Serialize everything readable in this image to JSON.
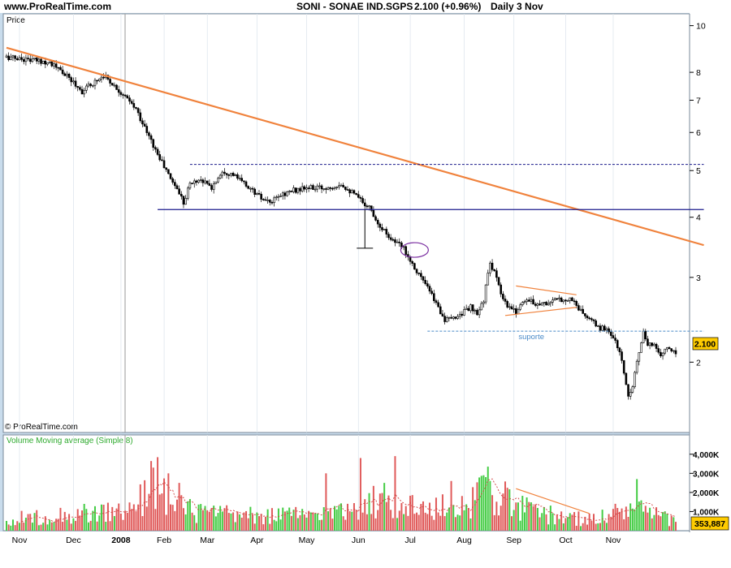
{
  "header": {
    "site": "www.ProRealTime.com",
    "title": "SONI - SONAE IND.SGPS",
    "quote": "2.100 (+0.96%)",
    "period": "Daily  3 Nov"
  },
  "price_panel": {
    "label": "Price",
    "copyright": "© ProRealTime.com",
    "support_label": "suporte"
  },
  "volume_panel": {
    "label": "Volume Moving average (Simple 8)"
  },
  "chart_data": [
    {
      "type": "candlestick",
      "title": "SONI - SONAE IND.SGPS",
      "symbol": "SONI",
      "last_price_label": "2.100",
      "y_scale": "log",
      "ylim": [
        1.55,
        10.3
      ],
      "y_ticks": [
        2,
        3,
        4,
        5,
        6,
        7,
        8,
        10
      ],
      "x_ticks": [
        "Nov",
        "Dec",
        "2008",
        "Feb",
        "Mar",
        "Apr",
        "May",
        "Jun",
        "Jul",
        "Aug",
        "Sep",
        "Oct",
        "Nov"
      ],
      "price_path": [
        [
          0,
          8.6
        ],
        [
          10,
          8.5
        ],
        [
          20,
          8.4
        ],
        [
          30,
          7.7
        ],
        [
          35,
          7.3
        ],
        [
          40,
          7.6
        ],
        [
          45,
          7.9
        ],
        [
          50,
          7.5
        ],
        [
          55,
          7.1
        ],
        [
          60,
          6.7
        ],
        [
          65,
          6.0
        ],
        [
          70,
          5.4
        ],
        [
          75,
          4.9
        ],
        [
          80,
          4.5
        ],
        [
          82,
          4.3
        ],
        [
          85,
          4.7
        ],
        [
          90,
          4.8
        ],
        [
          95,
          4.6
        ],
        [
          100,
          5.0
        ],
        [
          105,
          4.9
        ],
        [
          110,
          4.7
        ],
        [
          115,
          4.5
        ],
        [
          120,
          4.3
        ],
        [
          123,
          4.3
        ],
        [
          127,
          4.45
        ],
        [
          133,
          4.55
        ],
        [
          140,
          4.6
        ],
        [
          148,
          4.6
        ],
        [
          155,
          4.7
        ],
        [
          160,
          4.5
        ],
        [
          165,
          4.3
        ],
        [
          168,
          4.2
        ],
        [
          172,
          3.9
        ],
        [
          176,
          3.7
        ],
        [
          180,
          3.55
        ],
        [
          184,
          3.45
        ],
        [
          188,
          3.2
        ],
        [
          192,
          3.0
        ],
        [
          196,
          2.8
        ],
        [
          200,
          2.6
        ],
        [
          203,
          2.45
        ],
        [
          206,
          2.45
        ],
        [
          209,
          2.5
        ],
        [
          212,
          2.55
        ],
        [
          215,
          2.6
        ],
        [
          218,
          2.5
        ],
        [
          221,
          2.7
        ],
        [
          224,
          3.2
        ],
        [
          226,
          3.1
        ],
        [
          229,
          2.75
        ],
        [
          232,
          2.6
        ],
        [
          236,
          2.55
        ],
        [
          240,
          2.7
        ],
        [
          245,
          2.65
        ],
        [
          250,
          2.65
        ],
        [
          256,
          2.7
        ],
        [
          262,
          2.7
        ],
        [
          266,
          2.55
        ],
        [
          270,
          2.45
        ],
        [
          275,
          2.35
        ],
        [
          278,
          2.35
        ],
        [
          281,
          2.25
        ],
        [
          284,
          2.1
        ],
        [
          286,
          1.9
        ],
        [
          288,
          1.7
        ],
        [
          290,
          1.8
        ],
        [
          293,
          2.1
        ],
        [
          295,
          2.3
        ],
        [
          297,
          2.15
        ],
        [
          300,
          2.2
        ],
        [
          303,
          2.05
        ],
        [
          306,
          2.15
        ],
        [
          309,
          2.1
        ]
      ],
      "annotations": {
        "trendline_start": {
          "day": 0,
          "price": 9.0
        },
        "trendline_end": {
          "day": 323,
          "price": 3.5
        },
        "resistance": {
          "price": 5.15,
          "from_day": 85,
          "to_day": 323
        },
        "support_upper": {
          "price": 4.15,
          "from_day": 70,
          "to_day": 323
        },
        "support_lower": {
          "price": 2.32,
          "from_day": 195,
          "to_day": 323,
          "label": "suporte"
        },
        "vertical_marker": {
          "day": 166,
          "from": 4.15,
          "to": 3.45
        },
        "ellipse": {
          "day": 189,
          "price": 3.42
        },
        "triangle": [
          {
            "from": [
              236,
              2.88
            ],
            "to": [
              264,
              2.76
            ]
          },
          {
            "from": [
              231,
              2.5
            ],
            "to": [
              264,
              2.6
            ]
          }
        ]
      }
    },
    {
      "type": "bar",
      "title": "Volume Moving average (Simple 8)",
      "last_value_label": "353,887",
      "ylim": [
        0,
        4500000
      ],
      "y_ticks": [
        1000000,
        2000000,
        3000000,
        4000000
      ],
      "y_tick_labels": [
        "1,000K",
        "2,000K",
        "3,000K",
        "4,000K"
      ],
      "x_ticks": [
        "Nov",
        "Dec",
        "2008",
        "Feb",
        "Mar",
        "Apr",
        "May",
        "Jun",
        "Jul",
        "Aug",
        "Sep",
        "Oct",
        "Nov"
      ],
      "volume_profile": [
        [
          0,
          600000
        ],
        [
          30,
          900000
        ],
        [
          60,
          1100000
        ],
        [
          68,
          3300000
        ],
        [
          75,
          1400000
        ],
        [
          90,
          1000000
        ],
        [
          110,
          800000
        ],
        [
          150,
          900000
        ],
        [
          165,
          1500000
        ],
        [
          175,
          1700000
        ],
        [
          195,
          1100000
        ],
        [
          215,
          1500000
        ],
        [
          222,
          2700000
        ],
        [
          235,
          1300000
        ],
        [
          255,
          800000
        ],
        [
          270,
          600000
        ],
        [
          290,
          1200000
        ],
        [
          310,
          500000
        ],
        [
          323,
          350000
        ]
      ],
      "spikes": [
        [
          68,
          3300000
        ],
        [
          75,
          3000000
        ],
        [
          80,
          2500000
        ],
        [
          148,
          3000000
        ],
        [
          164,
          3800000
        ],
        [
          180,
          3900000
        ],
        [
          206,
          2600000
        ],
        [
          221,
          2900000
        ],
        [
          224,
          2600000
        ],
        [
          292,
          2700000
        ],
        [
          296,
          1300000
        ]
      ],
      "moving_average_label": "Moving average (Simple 8)"
    }
  ]
}
